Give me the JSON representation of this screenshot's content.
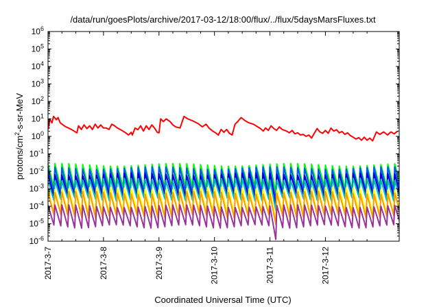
{
  "chart_data": {
    "type": "line",
    "title": "/data/run/goesPlots/archive/2017-03-12/18:00/flux/../flux/5daysMarsFluxes.txt",
    "xlabel": "Coordinated Universal Time (UTC)",
    "ylabel": "protons/cm²-s-sr-MeV",
    "ylabel_parts": {
      "pre": "protons/cm",
      "sup": "2",
      "post": "-s-sr-MeV"
    },
    "yscale": "log",
    "ylim": [
      1e-06,
      1000000.0
    ],
    "xlim": [
      0,
      6.33
    ],
    "x_unit": "days since 2017-3-7 00:00 UTC",
    "grid": false,
    "y_ticks": [
      {
        "exp": "-6",
        "value": 1e-06
      },
      {
        "exp": "-5",
        "value": 1e-05
      },
      {
        "exp": "-4",
        "value": 0.0001
      },
      {
        "exp": "-3",
        "value": 0.001
      },
      {
        "exp": "-2",
        "value": 0.01
      },
      {
        "exp": "-1",
        "value": 0.1
      },
      {
        "exp": "0",
        "value": 1
      },
      {
        "exp": "1",
        "value": 10
      },
      {
        "exp": "2",
        "value": 100
      },
      {
        "exp": "3",
        "value": 1000
      },
      {
        "exp": "4",
        "value": 10000
      },
      {
        "exp": "5",
        "value": 100000
      },
      {
        "exp": "6",
        "value": 1000000
      }
    ],
    "x_ticks": [
      {
        "label": "2017-3-7",
        "x": 0
      },
      {
        "label": "2017-3-8",
        "x": 1
      },
      {
        "label": "2017-3-9",
        "x": 2
      },
      {
        "label": "2017-3-10",
        "x": 3
      },
      {
        "label": "2017-3-11",
        "x": 4
      },
      {
        "label": "2017-3-12",
        "x": 5
      }
    ],
    "series": [
      {
        "color": "#ff0000",
        "points": [
          [
            0.0,
            2.5
          ],
          [
            0.03,
            10
          ],
          [
            0.07,
            6
          ],
          [
            0.1,
            14
          ],
          [
            0.15,
            9
          ],
          [
            0.18,
            12
          ],
          [
            0.22,
            6
          ],
          [
            0.27,
            4.5
          ],
          [
            0.32,
            3.5
          ],
          [
            0.37,
            3
          ],
          [
            0.42,
            2.5
          ],
          [
            0.47,
            2
          ],
          [
            0.52,
            1.6
          ],
          [
            0.55,
            4
          ],
          [
            0.6,
            2.5
          ],
          [
            0.65,
            4.5
          ],
          [
            0.7,
            2.8
          ],
          [
            0.75,
            4
          ],
          [
            0.8,
            2.5
          ],
          [
            0.85,
            5
          ],
          [
            0.9,
            3
          ],
          [
            0.95,
            4.5
          ],
          [
            1.0,
            3
          ],
          [
            1.05,
            3
          ],
          [
            1.1,
            2.5
          ],
          [
            1.15,
            5
          ],
          [
            1.2,
            4
          ],
          [
            1.25,
            3
          ],
          [
            1.3,
            2.5
          ],
          [
            1.35,
            2
          ],
          [
            1.4,
            1.6
          ],
          [
            1.45,
            1.2
          ],
          [
            1.5,
            1.7
          ],
          [
            1.52,
            1.2
          ],
          [
            1.57,
            3
          ],
          [
            1.62,
            2.4
          ],
          [
            1.67,
            4
          ],
          [
            1.72,
            2
          ],
          [
            1.77,
            4
          ],
          [
            1.82,
            2.5
          ],
          [
            1.87,
            4.5
          ],
          [
            1.92,
            3
          ],
          [
            1.97,
            1.7
          ],
          [
            2.0,
            1.6
          ],
          [
            2.03,
            10
          ],
          [
            2.08,
            7
          ],
          [
            2.13,
            10
          ],
          [
            2.2,
            7
          ],
          [
            2.25,
            4.5
          ],
          [
            2.3,
            3.5
          ],
          [
            2.38,
            3
          ],
          [
            2.45,
            14
          ],
          [
            2.52,
            10
          ],
          [
            2.6,
            8
          ],
          [
            2.7,
            5.5
          ],
          [
            2.78,
            3.5
          ],
          [
            2.85,
            5
          ],
          [
            2.9,
            3
          ],
          [
            2.97,
            2
          ],
          [
            3.02,
            1.6
          ],
          [
            3.07,
            1.2
          ],
          [
            3.12,
            2.5
          ],
          [
            3.17,
            1.7
          ],
          [
            3.22,
            2.5
          ],
          [
            3.27,
            1.5
          ],
          [
            3.32,
            1.2
          ],
          [
            3.37,
            5
          ],
          [
            3.42,
            7
          ],
          [
            3.48,
            12
          ],
          [
            3.55,
            8
          ],
          [
            3.62,
            6
          ],
          [
            3.7,
            5
          ],
          [
            3.78,
            3.5
          ],
          [
            3.83,
            2.8
          ],
          [
            3.88,
            2
          ],
          [
            3.92,
            3
          ],
          [
            3.97,
            2.2
          ],
          [
            4.02,
            4
          ],
          [
            4.07,
            2.8
          ],
          [
            4.12,
            2.2
          ],
          [
            4.17,
            3.5
          ],
          [
            4.22,
            2.5
          ],
          [
            4.3,
            2
          ],
          [
            4.35,
            1.6
          ],
          [
            4.4,
            2.2
          ],
          [
            4.45,
            1.4
          ],
          [
            4.5,
            1.6
          ],
          [
            4.55,
            1.2
          ],
          [
            4.6,
            1.3
          ],
          [
            4.65,
            1.0
          ],
          [
            4.7,
            1.2
          ],
          [
            4.75,
            0.8
          ],
          [
            4.8,
            1.5
          ],
          [
            4.85,
            2.8
          ],
          [
            4.9,
            1.8
          ],
          [
            4.95,
            1.5
          ],
          [
            5.0,
            2.2
          ],
          [
            5.05,
            1.5
          ],
          [
            5.1,
            3
          ],
          [
            5.15,
            2
          ],
          [
            5.2,
            2.4
          ],
          [
            5.25,
            1.6
          ],
          [
            5.3,
            1.9
          ],
          [
            5.35,
            1.3
          ],
          [
            5.4,
            1.6
          ],
          [
            5.45,
            1.1
          ],
          [
            5.5,
            0.9
          ],
          [
            5.55,
            0.7
          ],
          [
            5.6,
            0.85
          ],
          [
            5.65,
            0.6
          ],
          [
            5.7,
            0.9
          ],
          [
            5.75,
            0.6
          ],
          [
            5.8,
            0.8
          ],
          [
            5.85,
            0.55
          ],
          [
            5.92,
            1.8
          ],
          [
            5.98,
            1.3
          ],
          [
            6.05,
            1.8
          ],
          [
            6.12,
            1.2
          ],
          [
            6.18,
            1.8
          ],
          [
            6.24,
            1.4
          ],
          [
            6.3,
            2
          ]
        ]
      },
      {
        "color": "#00ff00",
        "low": 0.0012,
        "high": 0.028,
        "drop_low": 0.0008
      },
      {
        "color": "#0055ff",
        "low": 0.0007,
        "high": 0.018,
        "drop_low": 0.0003
      },
      {
        "color": "#0000cc",
        "low": 0.00045,
        "high": 0.008,
        "drop_low": 0.00015
      },
      {
        "color": "#00bbbb",
        "low": 0.00028,
        "high": 0.004,
        "drop_low": 6e-05
      },
      {
        "color": "#ffff00",
        "low": 4e-05,
        "high": 0.0012,
        "drop_low": 1.2e-05
      },
      {
        "color": "#ff9900",
        "low": 3e-05,
        "high": 0.0007,
        "drop_low": 9e-06
      },
      {
        "color": "#993399",
        "low": 8e-06,
        "high": 0.00012,
        "drop_low": 1.5e-06
      }
    ]
  }
}
